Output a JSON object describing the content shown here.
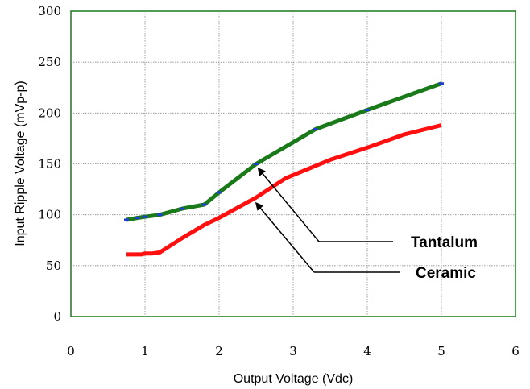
{
  "chart_data": {
    "type": "line",
    "xlabel": "Output Voltage (Vdc)",
    "ylabel": "Input Ripple Voltage (mVp-p)",
    "xlim": [
      0,
      6
    ],
    "ylim": [
      0,
      300
    ],
    "xticks": [
      "0",
      "1",
      "2",
      "3",
      "4",
      "5",
      "6"
    ],
    "yticks": [
      "0",
      "50",
      "100",
      "150",
      "200",
      "250",
      "300"
    ],
    "grid": true,
    "series": [
      {
        "name": "Tantalum",
        "color": "#1a7a1a",
        "x": [
          0.75,
          0.9,
          1.0,
          1.2,
          1.5,
          1.8,
          2.0,
          2.5,
          3.3,
          4.0,
          5.0
        ],
        "y": [
          95,
          97,
          98,
          100,
          106,
          110,
          122,
          150,
          184,
          203,
          229
        ]
      },
      {
        "name": "Ceramic",
        "color": "#ff1010",
        "x": [
          0.75,
          0.9,
          0.95,
          1.0,
          1.1,
          1.2,
          1.5,
          1.8,
          2.0,
          2.5,
          2.9,
          3.3,
          3.5,
          4.0,
          4.5,
          5.0
        ],
        "y": [
          61,
          61,
          61,
          62,
          62,
          63,
          77,
          90,
          97,
          117,
          136,
          148,
          154,
          166,
          179,
          188
        ]
      }
    ],
    "annotations": [
      {
        "text": "Tantalum",
        "target_x": 2.5,
        "target_y": 150
      },
      {
        "text": "Ceramic",
        "target_x": 2.47,
        "target_y": 116
      }
    ]
  }
}
